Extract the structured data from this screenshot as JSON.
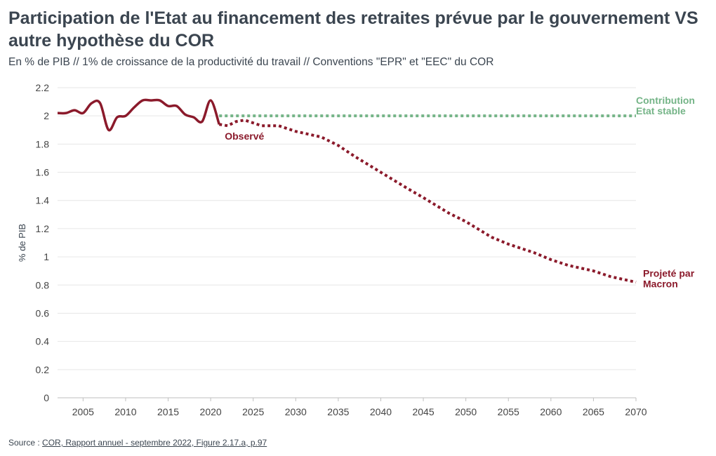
{
  "chart_data": {
    "type": "line",
    "title": "Participation de l'Etat au financement des retraites prévue par le gouvernement VS autre hypothèse du COR",
    "subtitle": "En % de PIB // 1% de croissance de la productivité du travail // Conventions \"EPR\" et \"EEC\" du COR",
    "ylabel": "% de PIB",
    "xlabel": "",
    "xlim": [
      2002,
      2070
    ],
    "ylim": [
      0,
      2.2
    ],
    "x_ticks": [
      2005,
      2010,
      2015,
      2020,
      2025,
      2030,
      2035,
      2040,
      2045,
      2050,
      2055,
      2060,
      2065,
      2070
    ],
    "y_ticks": [
      0,
      0.2,
      0.4,
      0.6,
      0.8,
      1,
      1.2,
      1.4,
      1.6,
      1.8,
      2,
      2.2
    ],
    "y_tick_labels": [
      "0",
      "0.2",
      "0.4",
      "0.6",
      "0.8",
      "1",
      "1.2",
      "1.4",
      "1.6",
      "1.8",
      "2",
      "2.2"
    ],
    "grid": true,
    "series": [
      {
        "name": "Observé",
        "color": "#8b1a2b",
        "style": "solid",
        "x": [
          2002,
          2003,
          2004,
          2005,
          2006,
          2007,
          2008,
          2009,
          2010,
          2011,
          2012,
          2013,
          2014,
          2015,
          2016,
          2017,
          2018,
          2019,
          2020,
          2021
        ],
        "y": [
          2.02,
          2.02,
          2.04,
          2.02,
          2.09,
          2.09,
          1.9,
          1.99,
          2.0,
          2.06,
          2.11,
          2.11,
          2.11,
          2.07,
          2.07,
          2.01,
          1.99,
          1.96,
          2.11,
          1.94
        ]
      },
      {
        "name": "Projeté par Macron",
        "color": "#8b1a2b",
        "style": "dotted",
        "x": [
          2021,
          2022,
          2023,
          2024,
          2025,
          2026,
          2027,
          2028,
          2030,
          2033,
          2035,
          2037,
          2040,
          2043,
          2045,
          2048,
          2050,
          2053,
          2055,
          2058,
          2060,
          2062,
          2065,
          2067,
          2070
        ],
        "y": [
          1.94,
          1.93,
          1.96,
          1.97,
          1.95,
          1.93,
          1.93,
          1.93,
          1.89,
          1.85,
          1.79,
          1.71,
          1.6,
          1.49,
          1.42,
          1.31,
          1.25,
          1.14,
          1.09,
          1.03,
          0.98,
          0.94,
          0.9,
          0.86,
          0.82
        ]
      },
      {
        "name": "Contribution Etat stable",
        "color": "#74b487",
        "style": "dotted",
        "x": [
          2021,
          2070
        ],
        "y": [
          2.0,
          2.0
        ]
      }
    ],
    "annotations": [
      {
        "series": 0,
        "lines": [
          "Observé"
        ],
        "color": "#8b1a2b"
      },
      {
        "series": 1,
        "lines": [
          "Projeté par",
          "Macron"
        ],
        "color": "#8b1a2b"
      },
      {
        "series": 2,
        "lines": [
          "Contribution",
          "Etat stable"
        ],
        "color": "#74b487"
      }
    ]
  },
  "source": {
    "prefix": "Source : ",
    "link_text": "COR, Rapport annuel - septembre 2022, Figure 2.17.a, p.97"
  }
}
